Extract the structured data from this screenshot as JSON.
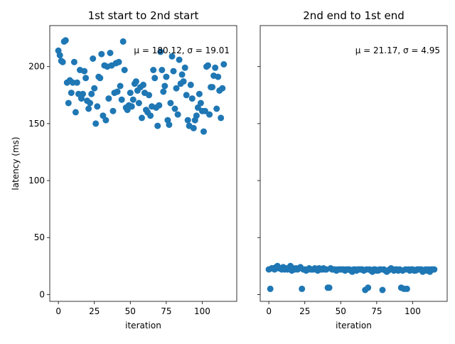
{
  "chart_data": [
    {
      "type": "scatter",
      "title": "1st start to 2nd start",
      "xlabel": "iteration",
      "ylabel": "latency (ms)",
      "xlim": [
        -6,
        124
      ],
      "ylim": [
        -6,
        236
      ],
      "xticks": [
        0,
        25,
        50,
        75,
        100
      ],
      "yticks": [
        0,
        50,
        100,
        150,
        200
      ],
      "annotation": "μ = 180.12, σ = 19.01",
      "color": "#1f77b4",
      "x": [
        0,
        1,
        2,
        3,
        4,
        5,
        6,
        7,
        8,
        9,
        10,
        11,
        12,
        13,
        14,
        15,
        16,
        17,
        18,
        19,
        20,
        21,
        22,
        23,
        24,
        25,
        26,
        27,
        28,
        29,
        30,
        31,
        32,
        33,
        34,
        35,
        36,
        37,
        38,
        39,
        40,
        41,
        42,
        43,
        44,
        45,
        46,
        47,
        48,
        49,
        50,
        51,
        52,
        53,
        54,
        55,
        56,
        57,
        58,
        59,
        60,
        61,
        62,
        63,
        64,
        65,
        66,
        67,
        68,
        69,
        70,
        71,
        72,
        73,
        74,
        75,
        76,
        77,
        78,
        79,
        80,
        81,
        82,
        83,
        84,
        85,
        86,
        87,
        88,
        89,
        90,
        91,
        92,
        93,
        94,
        95,
        96,
        97,
        98,
        99,
        100,
        101,
        102,
        103,
        104,
        105,
        106,
        107,
        108,
        109,
        110,
        111,
        112,
        113,
        114,
        115
      ],
      "y": [
        214,
        210,
        205,
        204,
        222,
        223,
        186,
        168,
        188,
        177,
        186,
        204,
        160,
        186,
        176,
        197,
        172,
        176,
        196,
        190,
        170,
        163,
        168,
        176,
        207,
        181,
        150,
        165,
        191,
        190,
        211,
        157,
        201,
        153,
        200,
        172,
        212,
        201,
        161,
        177,
        203,
        178,
        204,
        183,
        171,
        222,
        197,
        164,
        162,
        166,
        177,
        165,
        171,
        185,
        187,
        179,
        168,
        182,
        155,
        184,
        177,
        162,
        160,
        175,
        157,
        165,
        197,
        190,
        164,
        148,
        166,
        213,
        197,
        178,
        183,
        191,
        153,
        149,
        168,
        209,
        196,
        163,
        181,
        158,
        206,
        185,
        193,
        187,
        199,
        175,
        153,
        148,
        184,
        172,
        146,
        153,
        157,
        164,
        176,
        168,
        161,
        143,
        161,
        200,
        201,
        158,
        182,
        182,
        192,
        199,
        163,
        191,
        179,
        155,
        181,
        202
      ]
    },
    {
      "type": "scatter",
      "title": "2nd end to 1st end",
      "xlabel": "iteration",
      "ylabel": "",
      "xlim": [
        -6,
        124
      ],
      "ylim": [
        -6,
        236
      ],
      "xticks": [
        0,
        25,
        50,
        75,
        100
      ],
      "yticks": [
        0,
        50,
        100,
        150,
        200
      ],
      "annotation": "μ = 21.17, σ = 4.95",
      "color": "#1f77b4",
      "x": [
        0,
        1,
        2,
        3,
        4,
        5,
        6,
        7,
        8,
        9,
        10,
        11,
        12,
        13,
        14,
        15,
        16,
        17,
        18,
        19,
        20,
        21,
        22,
        23,
        24,
        25,
        26,
        27,
        28,
        29,
        30,
        31,
        32,
        33,
        34,
        35,
        36,
        37,
        38,
        39,
        40,
        41,
        42,
        43,
        44,
        45,
        46,
        47,
        48,
        49,
        50,
        51,
        52,
        53,
        54,
        55,
        56,
        57,
        58,
        59,
        60,
        61,
        62,
        63,
        64,
        65,
        66,
        67,
        68,
        69,
        70,
        71,
        72,
        73,
        74,
        75,
        76,
        77,
        78,
        79,
        80,
        81,
        82,
        83,
        84,
        85,
        86,
        87,
        88,
        89,
        90,
        91,
        92,
        93,
        94,
        95,
        96,
        97,
        98,
        99,
        100,
        101,
        102,
        103,
        104,
        105,
        106,
        107,
        108,
        109,
        110,
        111,
        112,
        113,
        114,
        115
      ],
      "y": [
        22,
        5,
        23,
        23,
        22,
        24,
        25,
        23,
        23,
        22,
        24,
        22,
        23,
        22,
        23,
        25,
        21,
        23,
        22,
        23,
        22,
        23,
        24,
        5,
        22,
        22,
        21,
        22,
        23,
        22,
        22,
        22,
        23,
        22,
        21,
        23,
        22,
        22,
        23,
        22,
        22,
        6,
        6,
        23,
        22,
        22,
        22,
        21,
        22,
        22,
        22,
        22,
        22,
        21,
        22,
        22,
        22,
        21,
        20,
        22,
        22,
        21,
        22,
        22,
        22,
        22,
        21,
        4,
        22,
        6,
        22,
        21,
        20,
        22,
        22,
        21,
        21,
        22,
        22,
        4,
        22,
        21,
        20,
        21,
        22,
        23,
        22,
        21,
        22,
        22,
        21,
        22,
        6,
        21,
        5,
        22,
        5,
        22,
        21,
        22,
        22,
        21,
        21,
        22,
        22,
        22,
        22,
        20,
        21,
        22,
        21,
        22,
        20,
        22,
        22,
        22
      ]
    }
  ]
}
